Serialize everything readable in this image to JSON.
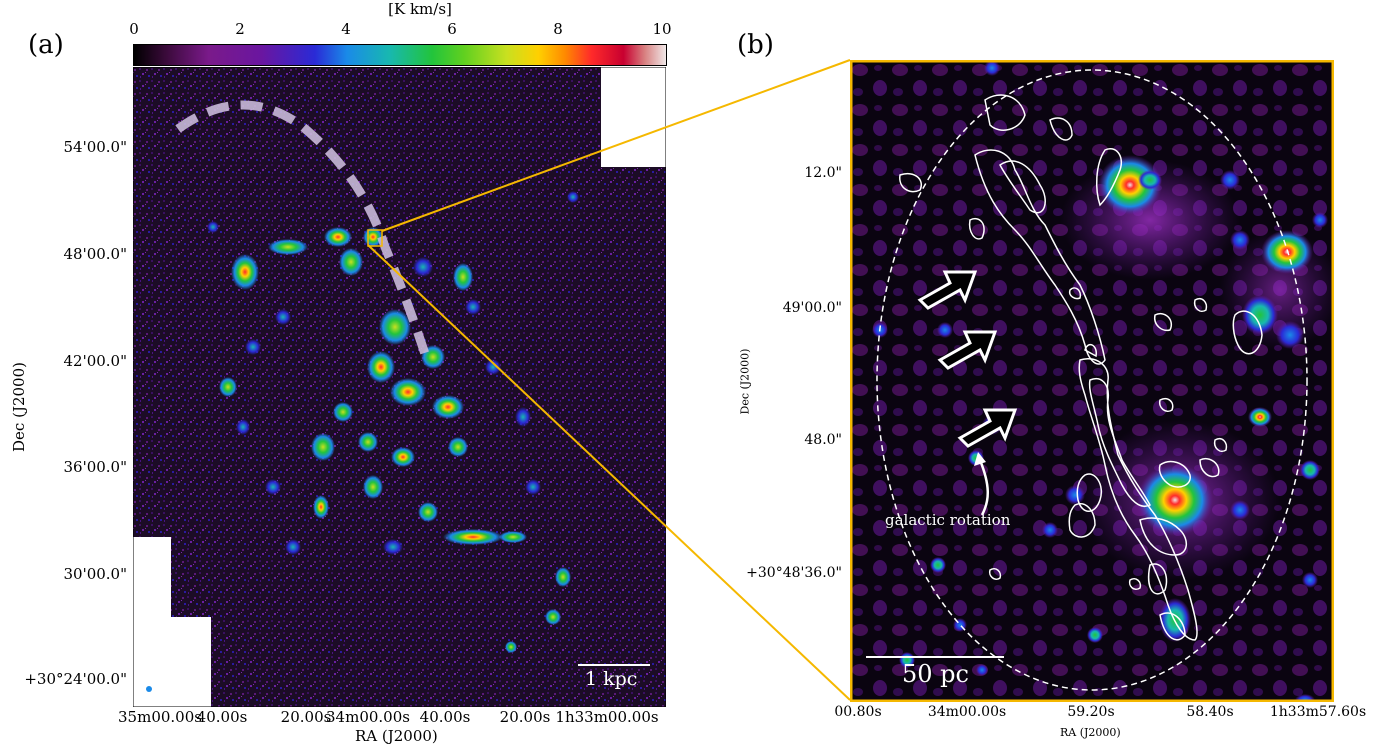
{
  "panel_a": {
    "label": "(a)",
    "colorbar": {
      "unit": "[K km/s]",
      "ticks": [
        "0",
        "2",
        "4",
        "6",
        "8",
        "10"
      ],
      "range": [
        0,
        10
      ]
    },
    "x_ticks": [
      "35m00.00s",
      "40.00s",
      "20.00s",
      "34m00.00s",
      "40.00s",
      "20.00s",
      "1h33m00.00s"
    ],
    "y_ticks": [
      "54'00.0\"",
      "48'00.0\"",
      "42'00.0\"",
      "36'00.0\"",
      "30'00.0\"",
      "+30°24'00.0\""
    ],
    "x_title": "RA (J2000)",
    "y_title": "Dec (J2000)",
    "scale_bar": "1 kpc"
  },
  "panel_b": {
    "label": "(b)",
    "x_ticks": [
      "00.80s",
      "34m00.00s",
      "59.20s",
      "58.40s",
      "1h33m57.60s"
    ],
    "y_ticks": [
      "12.0\"",
      "49'00.0\"",
      "48.0\"",
      "+30°48'36.0\""
    ],
    "x_title": "RA (J2000)",
    "y_title": "Dec (J2000)",
    "annotation": "galactic rotation",
    "scale_bar": "50 pc"
  },
  "colors": {
    "highlight": "#f5b800",
    "dashed_arc": "#c9b9d9",
    "map_base": "#1a0a24"
  }
}
